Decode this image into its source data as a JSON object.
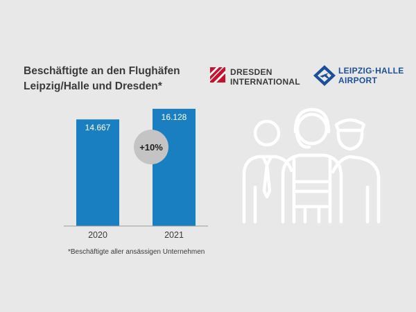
{
  "title": {
    "line1": "Beschäftigte an den Flughäfen",
    "line2": "Leipzig/Halle und Dresden*"
  },
  "logos": {
    "dresden": {
      "line1": "DRESDEN",
      "line2": "INTERNATIONAL",
      "color": "#c8102e"
    },
    "leipzig": {
      "line1": "LEIPZIG·HALLE",
      "line2": "AIRPORT",
      "color": "#1b4f99"
    }
  },
  "chart_data": {
    "type": "bar",
    "categories": [
      "2020",
      "2021"
    ],
    "values": [
      14667,
      16128
    ],
    "value_labels": [
      "14.667",
      "16.128"
    ],
    "ylim": [
      0,
      16500
    ],
    "grid": false,
    "bar_color": "#1a7fc0",
    "annotation": "+10%"
  },
  "footnote": "*Beschäftigte aller ansässigen Unternehmen",
  "illustration": {
    "icon": "airport-staff-icon"
  }
}
